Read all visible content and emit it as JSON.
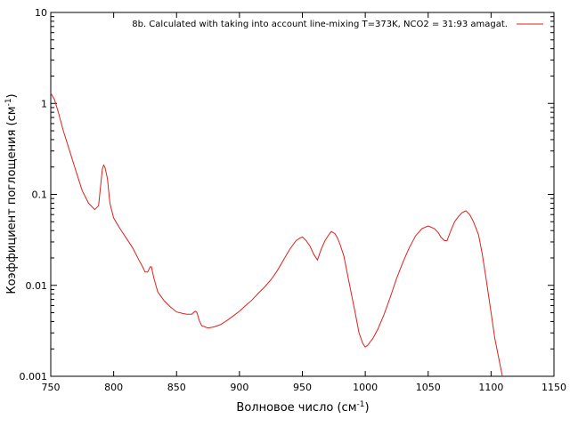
{
  "chart_data": {
    "type": "line",
    "xlabel_main": "Волновое число (см",
    "xlabel_sup": "-1",
    "xlabel_end": ")",
    "ylabel_main": "Коэффициент поглощения (см",
    "ylabel_sup": "-1",
    "ylabel_end": ")",
    "xlim": [
      750,
      1150
    ],
    "ylim": [
      0.001,
      10
    ],
    "yscale": "log",
    "legend_position": "top-right",
    "x_ticks": [
      750,
      800,
      850,
      900,
      950,
      1000,
      1050,
      1100,
      1150
    ],
    "x_tick_labels": [
      "750",
      "800",
      "850",
      "900",
      "950",
      "1000",
      "1050",
      "1100",
      "1150"
    ],
    "y_ticks": [
      0.001,
      0.01,
      0.1,
      1,
      10
    ],
    "y_tick_labels": [
      "0.001",
      "0.01",
      "0.1",
      "1",
      "10"
    ],
    "series": [
      {
        "name": "8b. Calculated with taking into account line-mixing T=373K, NCO2 = 31:93 amagat.",
        "color": "#e0201b",
        "x": [
          750,
          753,
          756,
          760,
          765,
          770,
          775,
          780,
          785,
          788,
          790,
          791,
          792,
          793,
          795,
          797,
          800,
          805,
          810,
          815,
          820,
          823,
          825,
          827,
          829,
          830,
          832,
          835,
          840,
          845,
          850,
          855,
          858,
          862,
          864,
          865,
          866,
          867,
          868,
          870,
          875,
          880,
          885,
          890,
          895,
          900,
          905,
          910,
          915,
          920,
          925,
          930,
          935,
          940,
          945,
          948,
          950,
          953,
          956,
          959,
          962,
          965,
          968,
          971,
          973,
          976,
          978,
          980,
          983,
          986,
          989,
          992,
          995,
          998,
          1000,
          1002,
          1004,
          1006,
          1010,
          1015,
          1020,
          1025,
          1030,
          1035,
          1040,
          1045,
          1050,
          1055,
          1058,
          1060,
          1063,
          1065,
          1068,
          1071,
          1074,
          1077,
          1080,
          1083,
          1086,
          1090,
          1093,
          1096,
          1100,
          1103,
          1106,
          1109
        ],
        "y": [
          1.3,
          1.1,
          0.8,
          0.5,
          0.3,
          0.18,
          0.11,
          0.08,
          0.068,
          0.075,
          0.14,
          0.19,
          0.21,
          0.2,
          0.15,
          0.08,
          0.055,
          0.042,
          0.033,
          0.026,
          0.019,
          0.016,
          0.014,
          0.014,
          0.016,
          0.016,
          0.012,
          0.0085,
          0.0068,
          0.0058,
          0.0051,
          0.0049,
          0.0048,
          0.0048,
          0.0051,
          0.0052,
          0.0051,
          0.0046,
          0.0041,
          0.0036,
          0.0034,
          0.0035,
          0.0037,
          0.0041,
          0.0046,
          0.0052,
          0.006,
          0.0069,
          0.0082,
          0.0096,
          0.0115,
          0.0145,
          0.019,
          0.025,
          0.031,
          0.033,
          0.034,
          0.031,
          0.027,
          0.022,
          0.019,
          0.025,
          0.031,
          0.036,
          0.039,
          0.037,
          0.033,
          0.028,
          0.021,
          0.013,
          0.008,
          0.005,
          0.003,
          0.0023,
          0.0021,
          0.0022,
          0.0024,
          0.0026,
          0.0033,
          0.0048,
          0.0075,
          0.012,
          0.018,
          0.026,
          0.035,
          0.042,
          0.045,
          0.042,
          0.038,
          0.034,
          0.031,
          0.031,
          0.04,
          0.05,
          0.057,
          0.063,
          0.066,
          0.06,
          0.05,
          0.036,
          0.022,
          0.012,
          0.005,
          0.0026,
          0.0016,
          0.001
        ]
      }
    ]
  }
}
